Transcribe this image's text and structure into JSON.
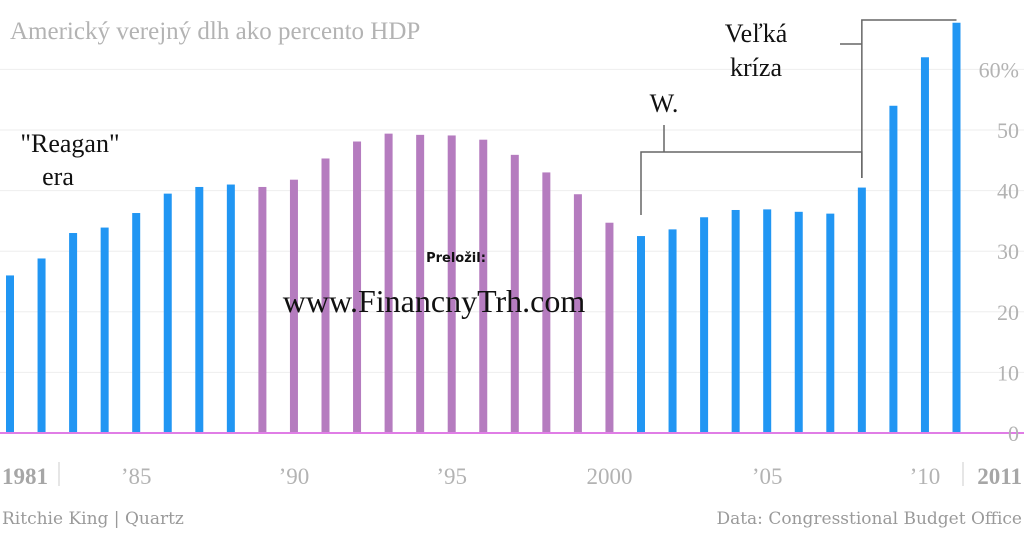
{
  "chart_data": {
    "type": "bar",
    "title": "Americký verejný dlh ako percento HDP",
    "ylim": [
      0,
      70
    ],
    "yticks": [
      {
        "value": 0,
        "label": "0"
      },
      {
        "value": 10,
        "label": "10"
      },
      {
        "value": 20,
        "label": "20"
      },
      {
        "value": 30,
        "label": "30"
      },
      {
        "value": 40,
        "label": "40"
      },
      {
        "value": 50,
        "label": "50"
      },
      {
        "value": 60,
        "label": "60%"
      }
    ],
    "grid": true,
    "axis_side": "right",
    "categories": [
      "1981",
      "1982",
      "1983",
      "1984",
      "1985",
      "1986",
      "1987",
      "1988",
      "1989",
      "1990",
      "1991",
      "1992",
      "1993",
      "1994",
      "1995",
      "1996",
      "1997",
      "1998",
      "1999",
      "2000",
      "2001",
      "2002",
      "2003",
      "2004",
      "2005",
      "2006",
      "2007",
      "2008",
      "2009",
      "2010",
      "2011"
    ],
    "values": [
      26,
      28.8,
      33,
      33.9,
      36.3,
      39.5,
      40.6,
      41.0,
      40.6,
      41.8,
      45.3,
      48.1,
      49.4,
      49.2,
      49.1,
      48.4,
      45.9,
      43.0,
      39.4,
      34.7,
      32.5,
      33.6,
      35.6,
      36.8,
      36.9,
      36.5,
      36.2,
      40.5,
      54.0,
      62.0,
      67.7
    ],
    "colors": [
      "blue",
      "blue",
      "blue",
      "blue",
      "blue",
      "blue",
      "blue",
      "blue",
      "purple",
      "purple",
      "purple",
      "purple",
      "purple",
      "purple",
      "purple",
      "purple",
      "purple",
      "purple",
      "purple",
      "purple",
      "blue",
      "blue",
      "blue",
      "blue",
      "blue",
      "blue",
      "blue",
      "blue",
      "blue",
      "blue",
      "blue"
    ],
    "palette": {
      "blue": "#2196f3",
      "purple": "#b57cbf",
      "baseline": "#e07de6",
      "grid": "#eeeeee",
      "bracket": "#666666"
    },
    "xticks": [
      {
        "year": "1981",
        "label": "1981",
        "bold": true
      },
      {
        "year": "1985",
        "label": "’85"
      },
      {
        "year": "1990",
        "label": "’90"
      },
      {
        "year": "1995",
        "label": "’95"
      },
      {
        "year": "2000",
        "label": "2000"
      },
      {
        "year": "2005",
        "label": "’05"
      },
      {
        "year": "2010",
        "label": "’10"
      },
      {
        "year": "2011",
        "label": "2011",
        "bold": true
      }
    ],
    "annotations": [
      {
        "lines": [
          "\"Reagan\"",
          "era"
        ]
      },
      {
        "lines": [
          "W."
        ]
      },
      {
        "lines": [
          "Veľká",
          "kríza"
        ]
      }
    ]
  },
  "watermark": {
    "label": "Preložil:",
    "site": "www.FinancnyTrh.com"
  },
  "footer": {
    "left": "Ritchie King | Quartz",
    "right": "Data: Congresstional Budget Office"
  }
}
